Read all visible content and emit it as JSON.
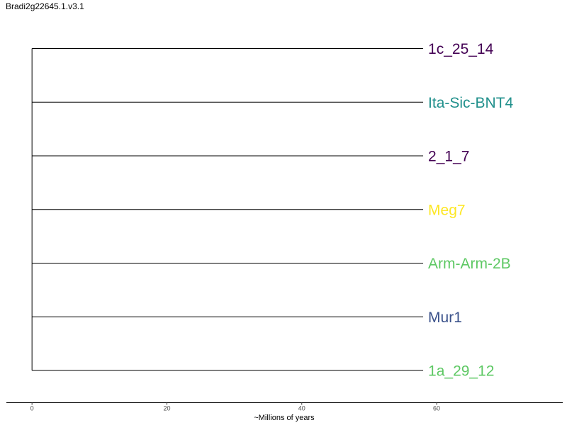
{
  "title": "Bradi2g22645.1.v3.1",
  "chart_data": {
    "type": "tree",
    "root_x": 0,
    "xlim": [
      -3.8,
      78.7
    ],
    "xlabel": "~Millions of years",
    "x_ticks": [
      0,
      20,
      40,
      60
    ],
    "leaves": [
      {
        "label": "1c_25_14",
        "branch_end": 58,
        "color": "#440154"
      },
      {
        "label": "Ita-Sic-BNT4",
        "branch_end": 58,
        "color": "#21908C"
      },
      {
        "label": "2_1_7",
        "branch_end": 58,
        "color": "#440154"
      },
      {
        "label": "Meg7",
        "branch_end": 58,
        "color": "#FDE725"
      },
      {
        "label": "Arm-Arm-2B",
        "branch_end": 58,
        "color": "#5DC863"
      },
      {
        "label": "Mur1",
        "branch_end": 58,
        "color": "#3B528B"
      },
      {
        "label": "1a_29_12",
        "branch_end": 58,
        "color": "#5DC863"
      }
    ]
  }
}
